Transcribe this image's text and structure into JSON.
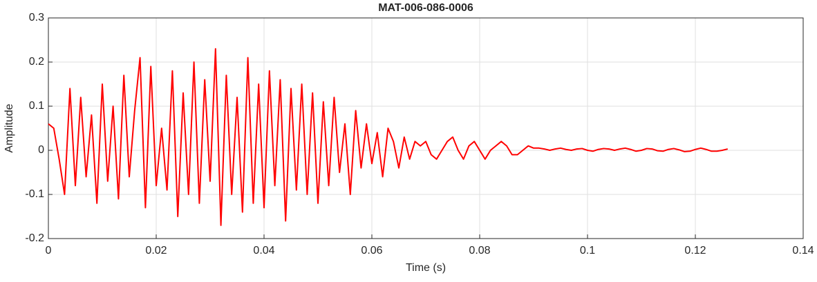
{
  "chart_data": {
    "type": "line",
    "title": "MAT-006-086-0006",
    "x_label": "Time (s)",
    "y_label": "Amplitude",
    "x": [
      0,
      0.001,
      0.002,
      0.003,
      0.004,
      0.005,
      0.006,
      0.007,
      0.008,
      0.009,
      0.01,
      0.011,
      0.012,
      0.013,
      0.014,
      0.015,
      0.016,
      0.017,
      0.018,
      0.019,
      0.02,
      0.021,
      0.022,
      0.023,
      0.024,
      0.025,
      0.026,
      0.027,
      0.028,
      0.029,
      0.03,
      0.031,
      0.032,
      0.033,
      0.034,
      0.035,
      0.036,
      0.037,
      0.038,
      0.039,
      0.04,
      0.041,
      0.042,
      0.043,
      0.044,
      0.045,
      0.046,
      0.047,
      0.048,
      0.049,
      0.05,
      0.051,
      0.052,
      0.053,
      0.054,
      0.055,
      0.056,
      0.057,
      0.058,
      0.059,
      0.06,
      0.061,
      0.062,
      0.063,
      0.064,
      0.065,
      0.066,
      0.067,
      0.068,
      0.069,
      0.07,
      0.071,
      0.072,
      0.073,
      0.074,
      0.075,
      0.076,
      0.077,
      0.078,
      0.079,
      0.08,
      0.081,
      0.082,
      0.083,
      0.084,
      0.085,
      0.086,
      0.087,
      0.088,
      0.089,
      0.09,
      0.091,
      0.092,
      0.093,
      0.094,
      0.095,
      0.096,
      0.097,
      0.098,
      0.099,
      0.1,
      0.101,
      0.102,
      0.103,
      0.104,
      0.105,
      0.106,
      0.107,
      0.108,
      0.109,
      0.11,
      0.111,
      0.112,
      0.113,
      0.114,
      0.115,
      0.116,
      0.117,
      0.118,
      0.119,
      0.12,
      0.121,
      0.122,
      0.123,
      0.124,
      0.125,
      0.126
    ],
    "series": [
      {
        "color": "#ff0000",
        "values": [
          0.06,
          0.05,
          -0.02,
          -0.1,
          0.14,
          -0.08,
          0.12,
          -0.06,
          0.08,
          -0.12,
          0.15,
          -0.07,
          0.1,
          -0.11,
          0.17,
          -0.06,
          0.09,
          0.21,
          -0.13,
          0.19,
          -0.08,
          0.05,
          -0.09,
          0.18,
          -0.15,
          0.13,
          -0.1,
          0.2,
          -0.12,
          0.16,
          -0.07,
          0.23,
          -0.17,
          0.17,
          -0.1,
          0.12,
          -0.14,
          0.21,
          -0.12,
          0.15,
          -0.13,
          0.18,
          -0.08,
          0.16,
          -0.16,
          0.14,
          -0.09,
          0.15,
          -0.1,
          0.13,
          -0.12,
          0.11,
          -0.08,
          0.12,
          -0.05,
          0.06,
          -0.1,
          0.09,
          -0.04,
          0.06,
          -0.03,
          0.04,
          -0.06,
          0.05,
          0.02,
          -0.04,
          0.03,
          -0.02,
          0.02,
          0.01,
          0.02,
          -0.01,
          -0.02,
          0,
          0.02,
          0.03,
          0,
          -0.02,
          0.01,
          0.02,
          0,
          -0.02,
          0,
          0.01,
          0.02,
          0.01,
          -0.01,
          -0.01,
          0,
          0.01,
          0.005,
          0.005,
          0.003,
          0,
          0.003,
          0.005,
          0.002,
          0,
          0.003,
          0.004,
          0,
          -0.002,
          0.002,
          0.004,
          0.003,
          0,
          0.003,
          0.005,
          0.002,
          -0.002,
          0,
          0.004,
          0.003,
          -0.001,
          -0.002,
          0.002,
          0.004,
          0.001,
          -0.003,
          -0.002,
          0.002,
          0.005,
          0.002,
          -0.002,
          -0.002,
          0,
          0.003
        ]
      }
    ],
    "xlim": [
      0,
      0.14
    ],
    "xticks": [
      0,
      0.02,
      0.04,
      0.06,
      0.08,
      0.1,
      0.12,
      0.14
    ],
    "ylim": [
      -0.2,
      0.3
    ],
    "yticks": [
      -0.2,
      -0.1,
      0,
      0.1,
      0.2,
      0.3
    ],
    "grid": true
  }
}
